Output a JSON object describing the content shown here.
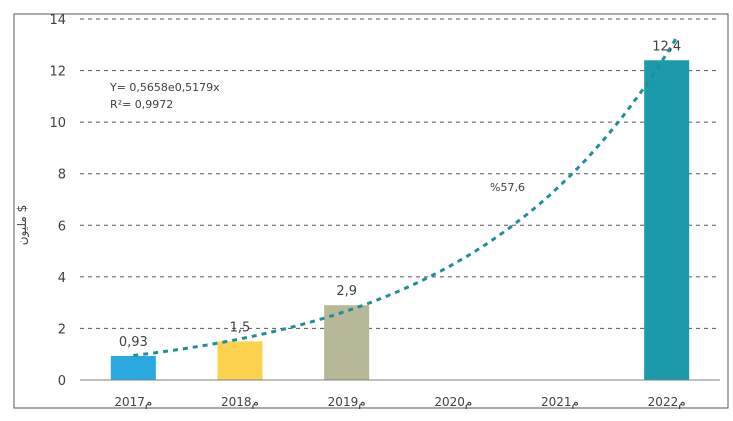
{
  "chart_data": {
    "type": "bar",
    "title": "",
    "xlabel": "",
    "ylabel": "مليون $",
    "ylim": [
      0,
      14
    ],
    "yticks": [
      0,
      2,
      4,
      6,
      8,
      10,
      12,
      14
    ],
    "grid": true,
    "categories": [
      "2017م",
      "2018م",
      "2019م",
      "2020م",
      "2021م",
      "2022م"
    ],
    "values": [
      0.93,
      1.5,
      2.9,
      null,
      null,
      12.4
    ],
    "value_labels": [
      "0,93",
      "1,5",
      "2,9",
      "",
      "",
      "12,4"
    ],
    "bar_colors": [
      "#2aa9e0",
      "#fdd24e",
      "#b6b898",
      null,
      null,
      "#1c9aab"
    ],
    "trendline": {
      "type": "exponential",
      "color": "#1f8f9c",
      "style": "dashed",
      "equation": "Y= 0,5658e0,5179x",
      "r_squared": "R²= 0,9972"
    },
    "growth_annotation": "%57,6"
  }
}
